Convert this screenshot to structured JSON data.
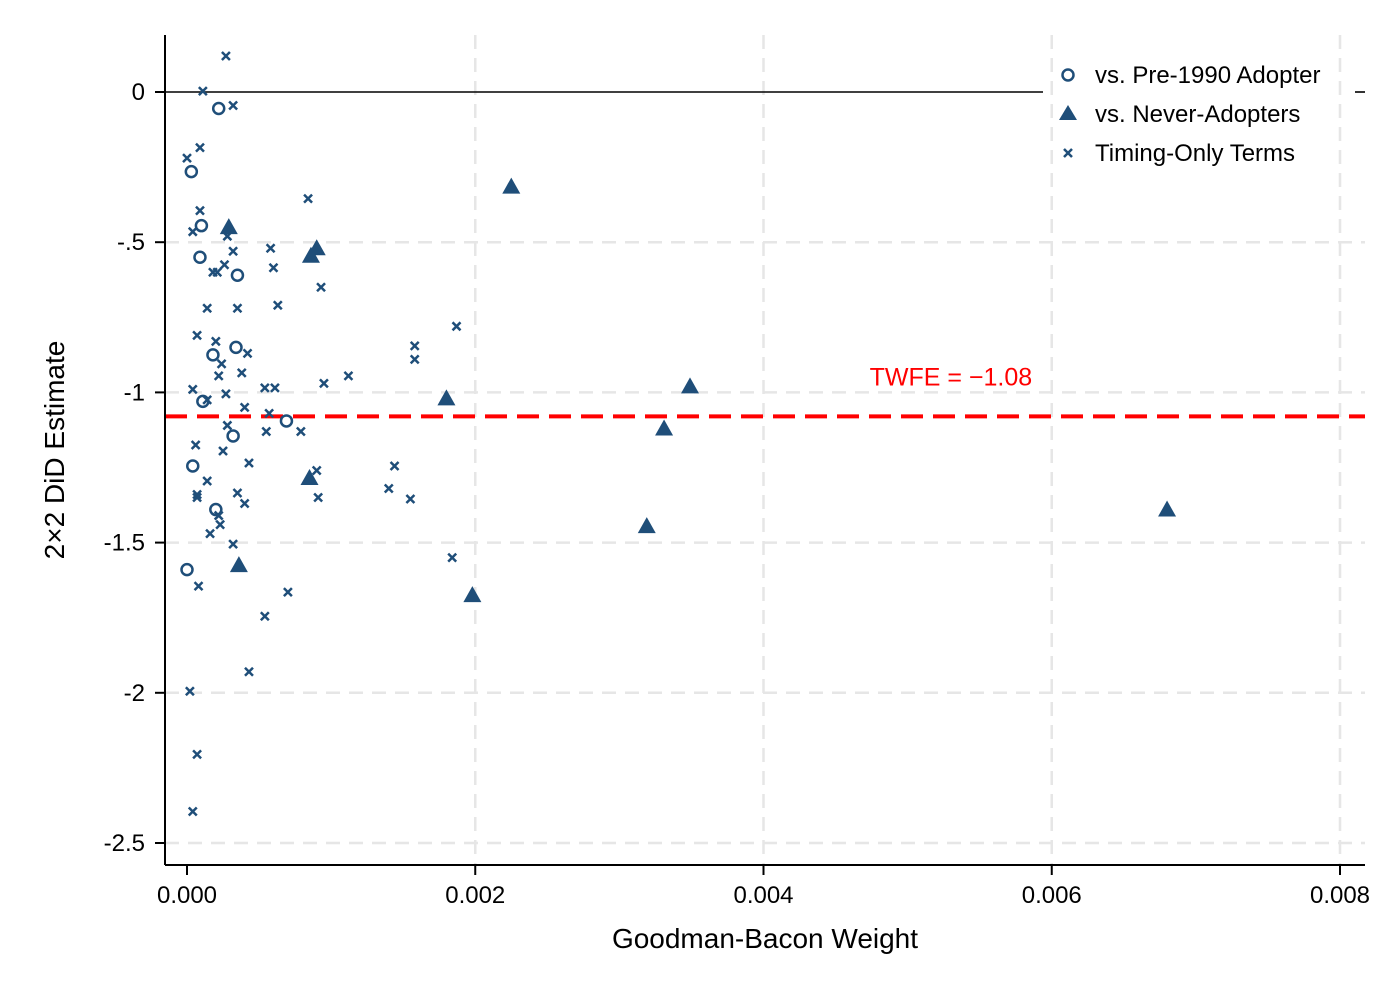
{
  "chart_data": {
    "type": "scatter",
    "title": "",
    "xlabel": "Goodman-Bacon Weight",
    "ylabel": "2×2 DiD Estimate",
    "xlim": [
      -0.00015,
      0.0081
    ],
    "ylim": [
      -2.6,
      0.18
    ],
    "x_ticks": [
      0,
      0.002,
      0.004,
      0.006,
      0.008
    ],
    "x_tick_labels": [
      "0.000",
      "0.002",
      "0.004",
      "0.006",
      "0.008"
    ],
    "y_ticks": [
      0,
      -0.5,
      -1,
      -1.5,
      -2,
      -2.5
    ],
    "y_tick_labels": [
      "0",
      "-.5",
      "-1",
      "-1.5",
      "-2",
      "-2.5"
    ],
    "grid": true,
    "legend_position": "top-right",
    "marker_color": "#1f4e79",
    "reference_lines": [
      {
        "y": 0,
        "color": "#000000",
        "style": "solid"
      },
      {
        "y": -1.08,
        "color": "#ff0000",
        "style": "dashed"
      }
    ],
    "annotation": {
      "text": "TWFE = −1.08",
      "x": 0.0053,
      "y": -0.95,
      "color": "#ff0000"
    },
    "series": [
      {
        "name": "vs. Pre-1990 Adopter",
        "marker": "circle",
        "points": [
          [
            0.00022,
            -0.055
          ],
          [
            3e-05,
            -0.265
          ],
          [
            0.0001,
            -0.445
          ],
          [
            9e-05,
            -0.55
          ],
          [
            0.00035,
            -0.61
          ],
          [
            0.00034,
            -0.85
          ],
          [
            0.00018,
            -0.875
          ],
          [
            0.00011,
            -1.03
          ],
          [
            0.00069,
            -1.095
          ],
          [
            0.00032,
            -1.145
          ],
          [
            4e-05,
            -1.245
          ],
          [
            0.0002,
            -1.39
          ],
          [
            0.0,
            -1.59
          ]
        ]
      },
      {
        "name": "vs. Never-Adopters",
        "marker": "triangle",
        "points": [
          [
            0.00225,
            -0.315
          ],
          [
            0.00029,
            -0.45
          ],
          [
            0.0009,
            -0.52
          ],
          [
            0.00086,
            -0.545
          ],
          [
            0.00349,
            -0.98
          ],
          [
            0.0018,
            -1.02
          ],
          [
            0.00331,
            -1.12
          ],
          [
            0.00085,
            -1.285
          ],
          [
            0.00319,
            -1.445
          ],
          [
            0.0068,
            -1.39
          ],
          [
            0.00036,
            -1.575
          ],
          [
            0.00198,
            -1.675
          ]
        ]
      },
      {
        "name": "Timing-Only Terms",
        "marker": "x",
        "points": [
          [
            0.00027,
            0.12
          ],
          [
            0.00011,
            0.003
          ],
          [
            0.00032,
            -0.045
          ],
          [
            9e-05,
            -0.185
          ],
          [
            0.0,
            -0.22
          ],
          [
            0.00084,
            -0.355
          ],
          [
            9e-05,
            -0.395
          ],
          [
            4e-05,
            -0.465
          ],
          [
            0.00028,
            -0.48
          ],
          [
            0.00058,
            -0.52
          ],
          [
            0.00032,
            -0.53
          ],
          [
            0.0006,
            -0.585
          ],
          [
            0.00026,
            -0.575
          ],
          [
            0.00018,
            -0.6
          ],
          [
            0.00021,
            -0.6
          ],
          [
            0.00093,
            -0.65
          ],
          [
            0.00014,
            -0.72
          ],
          [
            0.00035,
            -0.72
          ],
          [
            0.00063,
            -0.71
          ],
          [
            0.00187,
            -0.78
          ],
          [
            7e-05,
            -0.81
          ],
          [
            0.0002,
            -0.83
          ],
          [
            0.00158,
            -0.845
          ],
          [
            0.00042,
            -0.87
          ],
          [
            0.00158,
            -0.89
          ],
          [
            0.00024,
            -0.905
          ],
          [
            0.00038,
            -0.935
          ],
          [
            0.00022,
            -0.945
          ],
          [
            0.00112,
            -0.945
          ],
          [
            0.00095,
            -0.97
          ],
          [
            0.00054,
            -0.985
          ],
          [
            0.00061,
            -0.985
          ],
          [
            4e-05,
            -0.99
          ],
          [
            0.00027,
            -1.005
          ],
          [
            0.00014,
            -1.025
          ],
          [
            0.0004,
            -1.05
          ],
          [
            0.00057,
            -1.07
          ],
          [
            0.00028,
            -1.11
          ],
          [
            0.00055,
            -1.13
          ],
          [
            0.00079,
            -1.13
          ],
          [
            6e-05,
            -1.175
          ],
          [
            0.00025,
            -1.195
          ],
          [
            0.00043,
            -1.235
          ],
          [
            0.00144,
            -1.245
          ],
          [
            0.0009,
            -1.26
          ],
          [
            0.00014,
            -1.295
          ],
          [
            0.0014,
            -1.32
          ],
          [
            0.00035,
            -1.335
          ],
          [
            7e-05,
            -1.34
          ],
          [
            7e-05,
            -1.35
          ],
          [
            0.00091,
            -1.35
          ],
          [
            0.00155,
            -1.355
          ],
          [
            0.0004,
            -1.37
          ],
          [
            0.00022,
            -1.41
          ],
          [
            0.00023,
            -1.44
          ],
          [
            0.00016,
            -1.47
          ],
          [
            0.00032,
            -1.505
          ],
          [
            0.00184,
            -1.55
          ],
          [
            8e-05,
            -1.645
          ],
          [
            0.0007,
            -1.665
          ],
          [
            0.00054,
            -1.745
          ],
          [
            0.00043,
            -1.93
          ],
          [
            2e-05,
            -1.995
          ],
          [
            7e-05,
            -2.205
          ],
          [
            4e-05,
            -2.395
          ]
        ]
      }
    ]
  }
}
